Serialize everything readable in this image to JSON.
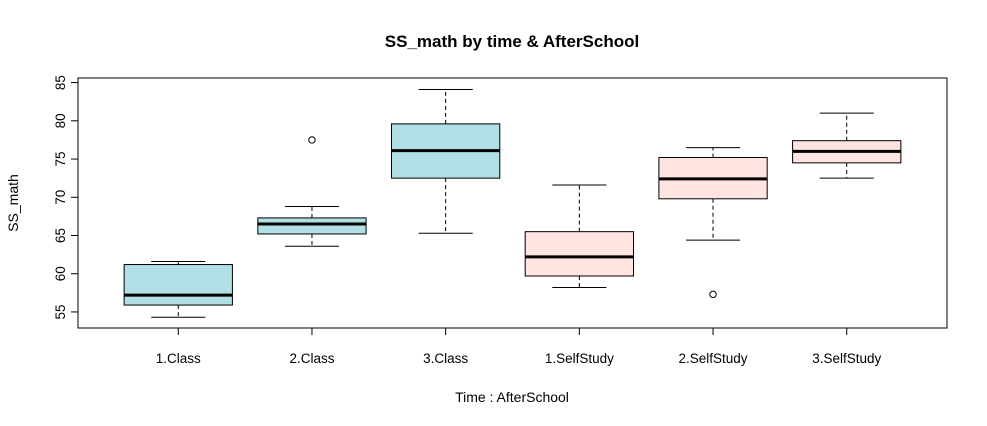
{
  "chart_data": {
    "type": "boxplot",
    "title": "SS_math by time & AfterSchool",
    "xlabel": "Time : AfterSchool",
    "ylabel": "SS_math",
    "ylim": [
      52.9,
      85.6
    ],
    "yticks": [
      55,
      60,
      65,
      70,
      75,
      80,
      85
    ],
    "categories": [
      "1.Class",
      "2.Class",
      "3.Class",
      "1.SelfStudy",
      "2.SelfStudy",
      "3.SelfStudy"
    ],
    "boxes": [
      {
        "label": "1.Class",
        "group": "Class",
        "whisker_low": 54.3,
        "q1": 55.9,
        "median": 57.2,
        "q3": 61.2,
        "whisker_high": 61.6,
        "outliers": []
      },
      {
        "label": "2.Class",
        "group": "Class",
        "whisker_low": 63.6,
        "q1": 65.2,
        "median": 66.5,
        "q3": 67.3,
        "whisker_high": 68.8,
        "outliers": [
          77.5
        ]
      },
      {
        "label": "3.Class",
        "group": "Class",
        "whisker_low": 65.3,
        "q1": 72.5,
        "median": 76.1,
        "q3": 79.6,
        "whisker_high": 84.1,
        "outliers": []
      },
      {
        "label": "1.SelfStudy",
        "group": "SelfStudy",
        "whisker_low": 58.2,
        "q1": 59.7,
        "median": 62.2,
        "q3": 65.5,
        "whisker_high": 71.6,
        "outliers": []
      },
      {
        "label": "2.SelfStudy",
        "group": "SelfStudy",
        "whisker_low": 64.4,
        "q1": 69.8,
        "median": 72.4,
        "q3": 75.2,
        "whisker_high": 76.5,
        "outliers": [
          57.3
        ]
      },
      {
        "label": "3.SelfStudy",
        "group": "SelfStudy",
        "whisker_low": 72.5,
        "q1": 74.5,
        "median": 76.0,
        "q3": 77.4,
        "whisker_high": 81.0,
        "outliers": []
      }
    ],
    "colors": {
      "Class": "#b0e0e6",
      "SelfStudy": "#ffe4e1"
    }
  }
}
